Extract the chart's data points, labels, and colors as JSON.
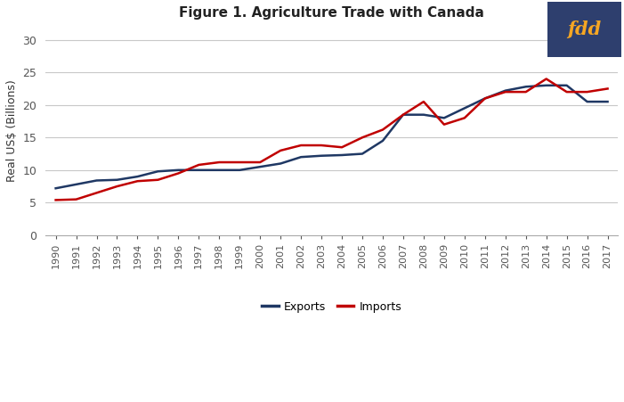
{
  "title": "Figure 1. Agriculture Trade with Canada",
  "ylabel": "Real US$ (Billions)",
  "years": [
    1990,
    1991,
    1992,
    1993,
    1994,
    1995,
    1996,
    1997,
    1998,
    1999,
    2000,
    2001,
    2002,
    2003,
    2004,
    2005,
    2006,
    2007,
    2008,
    2009,
    2010,
    2011,
    2012,
    2013,
    2014,
    2015,
    2016,
    2017
  ],
  "exports": [
    7.2,
    7.8,
    8.4,
    8.5,
    9.0,
    9.8,
    10.0,
    10.0,
    10.0,
    10.0,
    10.5,
    11.0,
    12.0,
    12.2,
    12.3,
    12.5,
    14.5,
    18.5,
    18.5,
    18.0,
    19.5,
    21.0,
    22.2,
    22.8,
    23.0,
    23.0,
    20.5,
    20.5
  ],
  "imports": [
    5.4,
    5.5,
    6.5,
    7.5,
    8.3,
    8.5,
    9.5,
    10.8,
    11.2,
    11.2,
    11.2,
    13.0,
    13.8,
    13.8,
    13.5,
    15.0,
    16.2,
    18.5,
    20.5,
    17.0,
    18.0,
    21.0,
    22.0,
    22.0,
    24.0,
    22.0,
    22.0,
    22.5
  ],
  "exports_color": "#1f3864",
  "imports_color": "#c00000",
  "background_color": "#ffffff",
  "ylim": [
    0,
    32
  ],
  "yticks": [
    0,
    5,
    10,
    15,
    20,
    25,
    30
  ],
  "grid_color": "#c8c8c8",
  "line_width": 1.8,
  "legend_labels": [
    "Exports",
    "Imports"
  ],
  "fdd_bg": "#2e3f6e",
  "fdd_text": "fdd",
  "fdd_text_color": "#f5a623",
  "title_fontsize": 11,
  "tick_fontsize": 8,
  "ylabel_fontsize": 9
}
